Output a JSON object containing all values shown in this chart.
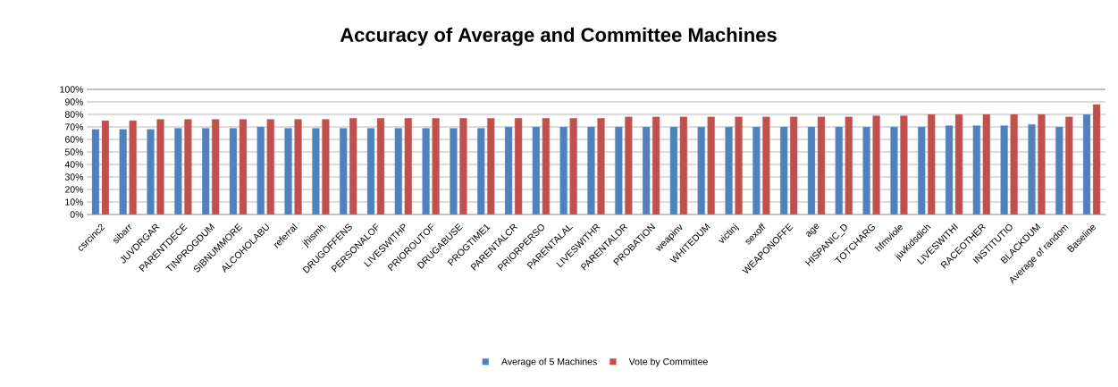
{
  "chart_data": {
    "type": "bar",
    "title": "Accuracy of Average and Committee Machines",
    "categories": [
      "csrcinc2",
      "sibarr",
      "JUVDRGAR",
      "PARENTDECE",
      "TINPROGDUM",
      "SIBNUMMORE",
      "ALCOHOLABU",
      "referral",
      "jhismh",
      "DRUGOFFENS",
      "PERSONALOF",
      "LIVESWITHP",
      "PRIOROUTOF",
      "DRUGABUSE",
      "PROGTIME1",
      "PARENTALCR",
      "PRIORPERSO",
      "PARENTALAL",
      "LIVESWITHR",
      "PARENTALDR",
      "PROBATION",
      "weapinv",
      "WHITEDUM",
      "victinj",
      "sexoff",
      "WEAPONOFFE",
      "age",
      "HISPANIC_D",
      "TOTCHARG",
      "hfmviole",
      "juvkidsdich",
      "LIVESWITHI",
      "RACEOTHER",
      "INSTITUTIO",
      "BLACKDUM",
      "Average of random",
      "Baseline"
    ],
    "series": [
      {
        "name": "Average of 5 Machines",
        "color": "#4f81bd",
        "values": [
          68,
          68,
          68,
          69,
          69,
          69,
          70,
          69,
          69,
          69,
          69,
          69,
          69,
          69,
          69,
          70,
          70,
          70,
          70,
          70,
          70,
          70,
          70,
          70,
          70,
          70,
          70,
          70,
          70,
          70,
          70,
          71,
          71,
          71,
          72,
          70,
          80
        ]
      },
      {
        "name": "Vote by Committee",
        "color": "#c0504d",
        "values": [
          75,
          75,
          76,
          76,
          76,
          76,
          76,
          76,
          76,
          77,
          77,
          77,
          77,
          77,
          77,
          77,
          77,
          77,
          77,
          78,
          78,
          78,
          78,
          78,
          78,
          78,
          78,
          78,
          79,
          79,
          80,
          80,
          80,
          80,
          80,
          78,
          88
        ]
      }
    ],
    "ylim": [
      0,
      100
    ],
    "yticks": [
      {
        "value": 0,
        "label": "0%"
      },
      {
        "value": 10,
        "label": "10%"
      },
      {
        "value": 20,
        "label": "20%"
      },
      {
        "value": 30,
        "label": "30%"
      },
      {
        "value": 40,
        "label": "40%"
      },
      {
        "value": 50,
        "label": "50%"
      },
      {
        "value": 60,
        "label": "60%"
      },
      {
        "value": 70,
        "label": "70%"
      },
      {
        "value": 80,
        "label": "80%"
      },
      {
        "value": 90,
        "label": "90%"
      },
      {
        "value": 100,
        "label": "100%"
      }
    ],
    "grid": "y",
    "legend": "bottom"
  }
}
